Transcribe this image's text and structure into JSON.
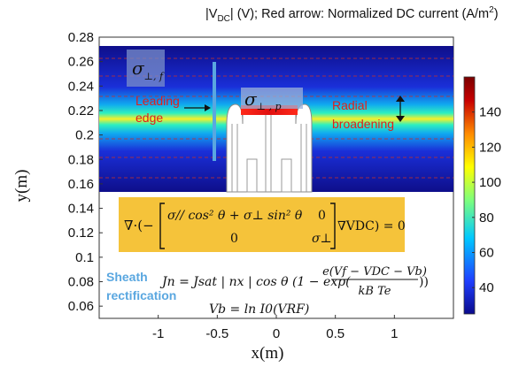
{
  "title": "|V_DC| (V); Red arrow: Normalized DC current (A/m²)",
  "title_parts": {
    "pre": "|V",
    "sub": "DC",
    "mid": "| (V); Red arrow: Normalized DC current (A/m",
    "sup": "2",
    "post": ")"
  },
  "axes": {
    "xlabel": "x(m)",
    "ylabel": "y(m)",
    "xticks": [
      "-1",
      "-0.5",
      "0",
      "0.5",
      "1"
    ],
    "yticks": [
      "0.28",
      "0.26",
      "0.24",
      "0.22",
      "0.2",
      "0.18",
      "0.16",
      "0.14",
      "0.12",
      "0.1",
      "0.08",
      "0.06"
    ],
    "xlim": [
      -1.5,
      1.5
    ],
    "ylim": [
      0.05,
      0.28
    ]
  },
  "colorbar": {
    "ticks": [
      "140",
      "120",
      "100",
      "80",
      "60",
      "40"
    ],
    "range": [
      25,
      160
    ],
    "colors": [
      "#0a0a8c",
      "#1f3fff",
      "#00c8ff",
      "#7dff7d",
      "#ffff00",
      "#ff8c00",
      "#c80000",
      "#7a0000"
    ]
  },
  "labels": {
    "sigma_f": {
      "sym": "σ",
      "sub": "⊥, f"
    },
    "sigma_p": {
      "sym": "σ",
      "sub": "⊥ , p"
    },
    "leading_edge": [
      "Leading",
      "edge"
    ],
    "radial_broadening": [
      "Radial",
      "broadening"
    ],
    "sheath_rectification": [
      "Sheath",
      "rectification"
    ]
  },
  "equations": {
    "main": {
      "lhs": "∇·(−",
      "m11": "σ// cos² θ + σ⊥ sin² θ",
      "m12": "0",
      "m21": "0",
      "m22": "σ⊥",
      "rhs": "∇VDC) = 0"
    },
    "jn": {
      "pre": "Jn = Jsat | nx | cos θ (1 − exp(",
      "num": "e(Vf − VDC − Vb)",
      "den": "kB Te",
      "post": "))"
    },
    "vb": "Vb = ln I0(VRF)"
  },
  "colors": {
    "eq_box": "#f5c33a",
    "leading_edge_text": "#e0201b",
    "sheath_text": "#5aa7e0",
    "antenna_line": "#5aa7e0",
    "plot_bg": "#0e0e8a"
  }
}
